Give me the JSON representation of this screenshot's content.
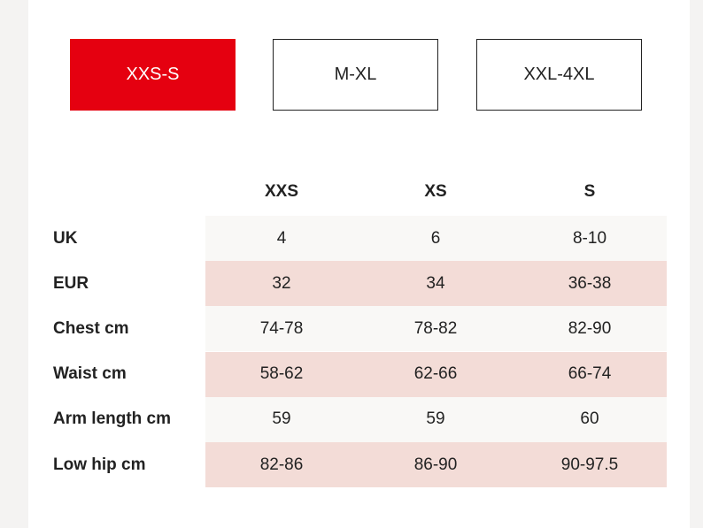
{
  "tabs": [
    {
      "label": "XXS-S",
      "selected": true
    },
    {
      "label": "M-XL",
      "selected": false
    },
    {
      "label": "XXL-4XL",
      "selected": false
    }
  ],
  "table": {
    "columns": [
      "XXS",
      "XS",
      "S"
    ],
    "rows": [
      {
        "label": "UK",
        "cells": [
          "4",
          "6",
          "8-10"
        ]
      },
      {
        "label": "EUR",
        "cells": [
          "32",
          "34",
          "36-38"
        ]
      },
      {
        "label": "Chest cm",
        "cells": [
          "74-78",
          "78-82",
          "82-90"
        ]
      },
      {
        "label": "Waist cm",
        "cells": [
          "58-62",
          "62-66",
          "66-74"
        ]
      },
      {
        "label": "Arm length cm",
        "cells": [
          "59",
          "59",
          "60"
        ]
      },
      {
        "label": "Low hip cm",
        "cells": [
          "82-86",
          "86-90",
          "90-97.5"
        ]
      }
    ]
  }
}
